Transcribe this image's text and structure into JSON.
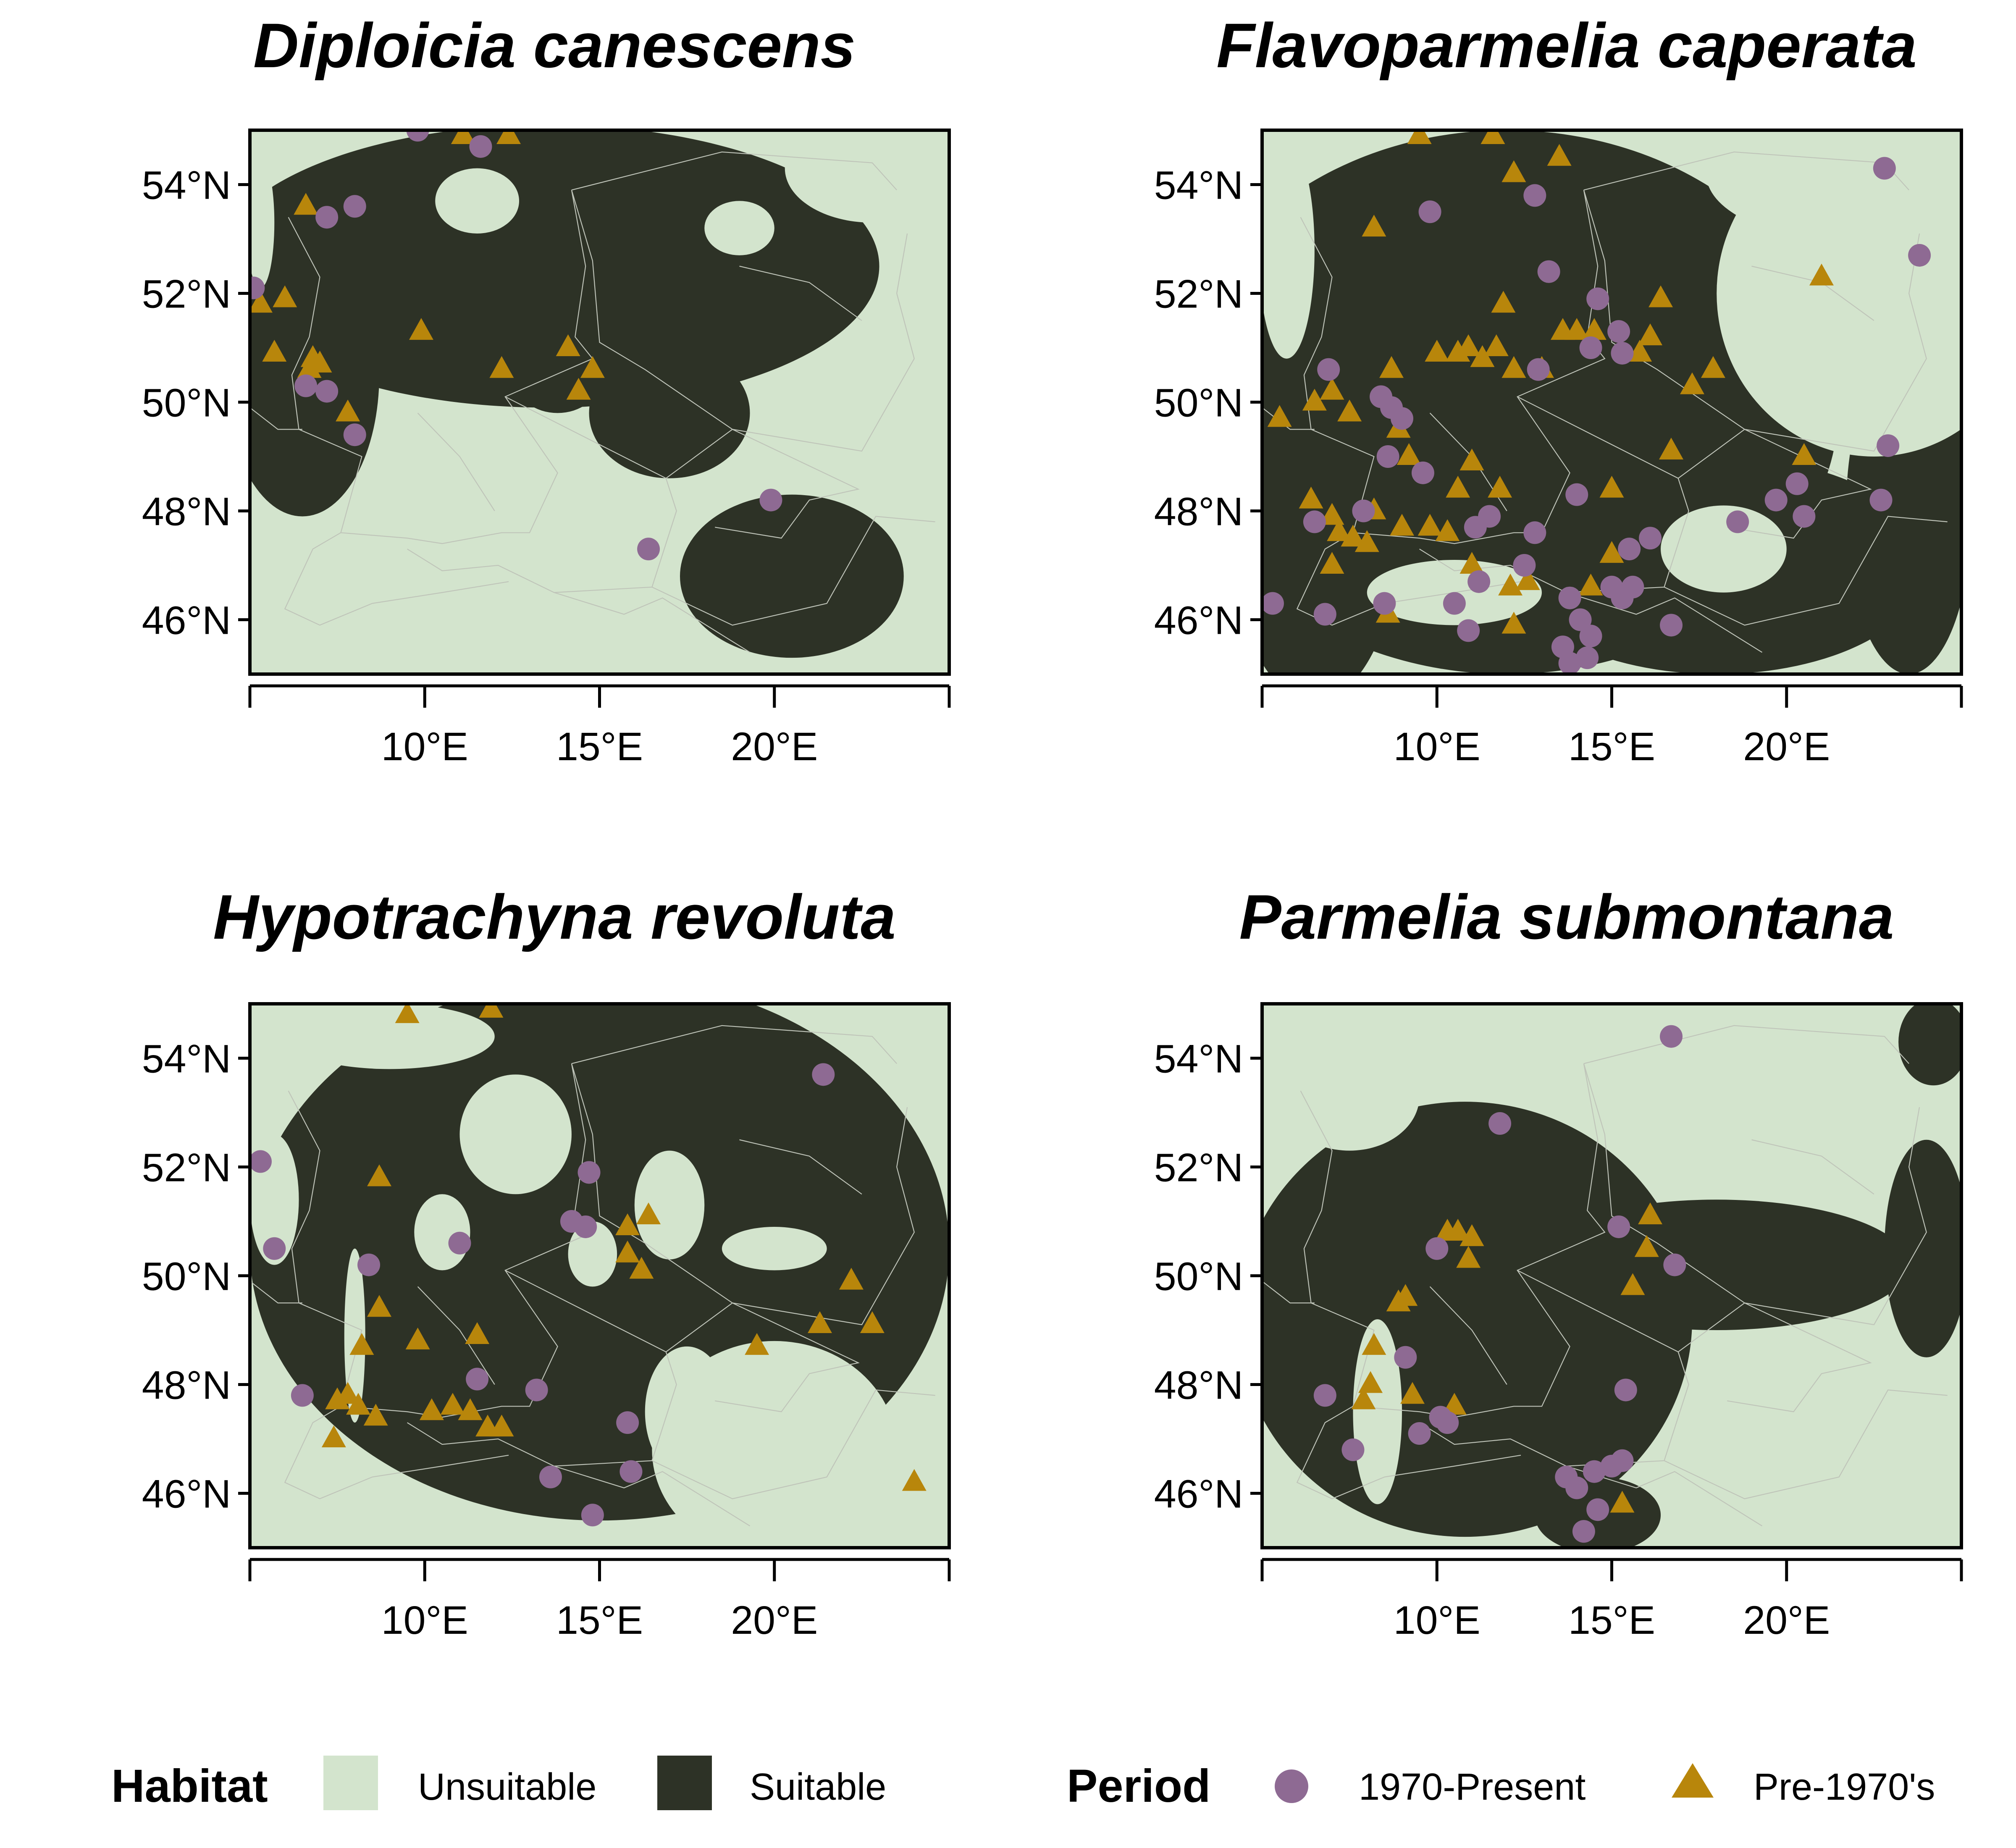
{
  "figure": {
    "colors": {
      "unsuitable": "#d3e4cd",
      "suitable": "#2d3226",
      "present": "#8e6a93",
      "pre1970": "#b8860b",
      "border": "#bfc4b9"
    }
  },
  "axes": {
    "lat_ticks": [
      "54°N",
      "52°N",
      "50°N",
      "48°N",
      "46°N"
    ],
    "lon_ticks": [
      "10°E",
      "15°E",
      "20°E"
    ],
    "lat_values": [
      54,
      52,
      50,
      48,
      46
    ],
    "lon_values": [
      10,
      15,
      20
    ],
    "lon_range": [
      5,
      25
    ],
    "lat_range": [
      45,
      55
    ]
  },
  "legend": {
    "habitat_title": "Habitat",
    "habitat_unsuitable": "Unsuitable",
    "habitat_suitable": "Suitable",
    "period_title": "Period",
    "period_present": "1970-Present",
    "period_pre": "Pre-1970's"
  },
  "panels": [
    {
      "title": "Diploicia canescens"
    },
    {
      "title": "Flavoparmelia caperata"
    },
    {
      "title": "Hypotrachyna revoluta"
    },
    {
      "title": "Parmelia submontana"
    }
  ],
  "chart_data": [
    {
      "type": "scatter",
      "title": "Diploicia canescens",
      "xlim": [
        5,
        25
      ],
      "ylim": [
        45,
        55
      ],
      "habitat_suitable_blobs": [
        {
          "lon": 13.5,
          "lat": 52.5,
          "rlon": 9.5,
          "rlat": 2.6
        },
        {
          "lon": 6.5,
          "lat": 50.5,
          "rlon": 2.2,
          "rlat": 2.6
        },
        {
          "lon": 20.5,
          "lat": 46.8,
          "rlon": 3.2,
          "rlat": 1.5
        },
        {
          "lon": 17.0,
          "lat": 49.8,
          "rlon": 2.3,
          "rlat": 1.2
        },
        {
          "lon": 13.8,
          "lat": 50.4,
          "rlon": 1.2,
          "rlat": 0.6
        }
      ],
      "habitat_unsuitable_blobs": [
        {
          "lon": 22.8,
          "lat": 54.3,
          "rlon": 2.5,
          "rlat": 1.0
        },
        {
          "lon": 11.5,
          "lat": 53.7,
          "rlon": 1.2,
          "rlat": 0.6
        },
        {
          "lon": 19.0,
          "lat": 53.2,
          "rlon": 1.0,
          "rlat": 0.5
        },
        {
          "lon": 5.3,
          "lat": 53.3,
          "rlon": 0.4,
          "rlat": 1.2
        }
      ],
      "present": [
        [
          5.1,
          52.1
        ],
        [
          7.2,
          53.4
        ],
        [
          8.0,
          53.6
        ],
        [
          9.8,
          55.0
        ],
        [
          11.6,
          54.7
        ],
        [
          6.6,
          50.3
        ],
        [
          7.2,
          50.2
        ],
        [
          8.0,
          49.4
        ],
        [
          19.9,
          48.2
        ],
        [
          16.4,
          47.3
        ]
      ],
      "pre1970": [
        [
          6.6,
          53.6
        ],
        [
          5.3,
          51.8
        ],
        [
          6.0,
          51.9
        ],
        [
          6.8,
          50.8
        ],
        [
          6.7,
          50.6
        ],
        [
          5.7,
          50.9
        ],
        [
          7.0,
          50.7
        ],
        [
          7.8,
          49.8
        ],
        [
          9.9,
          51.3
        ],
        [
          14.1,
          51.0
        ],
        [
          14.8,
          50.6
        ],
        [
          14.4,
          50.2
        ],
        [
          12.2,
          50.6
        ],
        [
          11.1,
          54.9
        ],
        [
          12.4,
          54.9
        ]
      ]
    },
    {
      "type": "scatter",
      "title": "Flavoparmelia caperata",
      "xlim": [
        5,
        25
      ],
      "ylim": [
        45,
        55
      ],
      "habitat_suitable_blobs": [
        {
          "lon": 12.0,
          "lat": 50.0,
          "rlon": 9.5,
          "rlat": 5.0
        },
        {
          "lon": 18.0,
          "lat": 47.0,
          "rlon": 6.0,
          "rlat": 2.0
        },
        {
          "lon": 23.5,
          "lat": 48.0,
          "rlon": 1.8,
          "rlat": 3.0
        },
        {
          "lon": 6.5,
          "lat": 48.0,
          "rlon": 2.5,
          "rlat": 3.5
        }
      ],
      "habitat_unsuitable_blobs": [
        {
          "lon": 22.5,
          "lat": 52.0,
          "rlon": 4.5,
          "rlat": 3.0
        },
        {
          "lon": 21.5,
          "lat": 54.2,
          "rlon": 3.8,
          "rlat": 1.2
        },
        {
          "lon": 18.2,
          "lat": 47.3,
          "rlon": 1.8,
          "rlat": 0.8
        },
        {
          "lon": 5.7,
          "lat": 52.8,
          "rlon": 0.8,
          "rlat": 2.0
        },
        {
          "lon": 10.5,
          "lat": 46.5,
          "rlon": 2.5,
          "rlat": 0.6
        }
      ],
      "present": [
        [
          22.8,
          54.3
        ],
        [
          23.8,
          52.7
        ],
        [
          9.8,
          53.5
        ],
        [
          12.8,
          53.8
        ],
        [
          13.2,
          52.4
        ],
        [
          14.6,
          51.9
        ],
        [
          6.9,
          50.6
        ],
        [
          12.9,
          50.6
        ],
        [
          14.4,
          51.0
        ],
        [
          15.2,
          51.3
        ],
        [
          15.3,
          50.9
        ],
        [
          8.4,
          50.1
        ],
        [
          8.7,
          49.9
        ],
        [
          9.0,
          49.7
        ],
        [
          8.6,
          49.0
        ],
        [
          9.6,
          48.7
        ],
        [
          7.9,
          48.0
        ],
        [
          6.5,
          47.8
        ],
        [
          11.1,
          47.7
        ],
        [
          11.5,
          47.9
        ],
        [
          12.8,
          47.6
        ],
        [
          14.0,
          48.3
        ],
        [
          15.5,
          47.3
        ],
        [
          16.1,
          47.5
        ],
        [
          12.5,
          47.0
        ],
        [
          11.2,
          46.7
        ],
        [
          10.5,
          46.3
        ],
        [
          8.5,
          46.3
        ],
        [
          10.9,
          45.8
        ],
        [
          6.8,
          46.1
        ],
        [
          5.3,
          46.3
        ],
        [
          13.8,
          46.4
        ],
        [
          14.1,
          46.0
        ],
        [
          14.4,
          45.7
        ],
        [
          13.6,
          45.5
        ],
        [
          15.0,
          46.6
        ],
        [
          15.3,
          46.4
        ],
        [
          15.6,
          46.6
        ],
        [
          16.7,
          45.9
        ],
        [
          18.6,
          47.8
        ],
        [
          19.7,
          48.2
        ],
        [
          20.3,
          48.5
        ],
        [
          20.5,
          47.9
        ],
        [
          22.9,
          49.2
        ],
        [
          22.7,
          48.2
        ],
        [
          13.8,
          45.2
        ],
        [
          14.3,
          45.3
        ]
      ],
      "pre1970": [
        [
          9.5,
          54.9
        ],
        [
          11.6,
          54.9
        ],
        [
          12.2,
          54.2
        ],
        [
          13.5,
          54.5
        ],
        [
          8.2,
          53.2
        ],
        [
          21.0,
          52.3
        ],
        [
          11.9,
          51.8
        ],
        [
          16.4,
          51.9
        ],
        [
          13.6,
          51.3
        ],
        [
          14.0,
          51.3
        ],
        [
          14.5,
          51.3
        ],
        [
          16.1,
          51.2
        ],
        [
          10.0,
          50.9
        ],
        [
          10.6,
          50.9
        ],
        [
          10.9,
          51.0
        ],
        [
          11.3,
          50.8
        ],
        [
          11.7,
          51.0
        ],
        [
          12.2,
          50.6
        ],
        [
          13.0,
          50.6
        ],
        [
          15.8,
          50.9
        ],
        [
          17.3,
          50.3
        ],
        [
          17.9,
          50.6
        ],
        [
          8.7,
          50.6
        ],
        [
          7.0,
          50.2
        ],
        [
          6.5,
          50.0
        ],
        [
          5.5,
          49.7
        ],
        [
          7.5,
          49.8
        ],
        [
          8.9,
          49.5
        ],
        [
          9.2,
          49.0
        ],
        [
          11.0,
          48.9
        ],
        [
          11.8,
          48.4
        ],
        [
          10.6,
          48.4
        ],
        [
          15.0,
          48.4
        ],
        [
          16.7,
          49.1
        ],
        [
          20.5,
          49.0
        ],
        [
          6.4,
          48.2
        ],
        [
          7.0,
          47.9
        ],
        [
          8.2,
          48.0
        ],
        [
          9.0,
          47.7
        ],
        [
          9.8,
          47.7
        ],
        [
          10.3,
          47.6
        ],
        [
          7.2,
          47.6
        ],
        [
          7.6,
          47.5
        ],
        [
          8.0,
          47.4
        ],
        [
          11.0,
          47.0
        ],
        [
          12.1,
          46.6
        ],
        [
          12.6,
          46.7
        ],
        [
          12.2,
          45.9
        ],
        [
          15.0,
          47.2
        ],
        [
          14.4,
          46.6
        ],
        [
          8.6,
          46.1
        ],
        [
          7.0,
          47.0
        ]
      ]
    },
    {
      "type": "scatter",
      "title": "Hypotrachyna revoluta",
      "xlim": [
        5,
        25
      ],
      "ylim": [
        45,
        55
      ],
      "habitat_suitable_blobs": [
        {
          "lon": 15.0,
          "lat": 50.5,
          "rlon": 10.0,
          "rlat": 5.0
        }
      ],
      "habitat_unsuitable_blobs": [
        {
          "lon": 20.0,
          "lat": 46.8,
          "rlon": 3.5,
          "rlat": 2.0
        },
        {
          "lon": 12.6,
          "lat": 52.6,
          "rlon": 1.6,
          "rlat": 1.1
        },
        {
          "lon": 17.5,
          "lat": 47.5,
          "rlon": 1.2,
          "rlat": 1.2
        },
        {
          "lon": 14.8,
          "lat": 50.4,
          "rlon": 0.7,
          "rlat": 0.6
        },
        {
          "lon": 17.0,
          "lat": 51.3,
          "rlon": 1.0,
          "rlat": 1.0
        },
        {
          "lon": 5.7,
          "lat": 51.4,
          "rlon": 0.7,
          "rlat": 1.2
        },
        {
          "lon": 9.0,
          "lat": 54.4,
          "rlon": 3.0,
          "rlat": 0.6
        },
        {
          "lon": 8.0,
          "lat": 48.9,
          "rlon": 0.3,
          "rlat": 1.6
        },
        {
          "lon": 10.5,
          "lat": 50.8,
          "rlon": 0.8,
          "rlat": 0.7
        },
        {
          "lon": 20.0,
          "lat": 50.5,
          "rlon": 1.5,
          "rlat": 0.4
        }
      ],
      "present": [
        [
          5.3,
          52.1
        ],
        [
          5.7,
          50.5
        ],
        [
          8.4,
          50.2
        ],
        [
          11.0,
          50.6
        ],
        [
          14.2,
          51.0
        ],
        [
          14.6,
          50.9
        ],
        [
          14.7,
          51.9
        ],
        [
          6.5,
          47.8
        ],
        [
          11.5,
          48.1
        ],
        [
          13.2,
          47.9
        ],
        [
          15.8,
          47.3
        ],
        [
          15.9,
          46.4
        ],
        [
          13.6,
          46.3
        ],
        [
          14.8,
          45.6
        ],
        [
          21.4,
          53.7
        ]
      ],
      "pre1970": [
        [
          9.5,
          54.8
        ],
        [
          11.9,
          54.9
        ],
        [
          8.7,
          51.8
        ],
        [
          15.8,
          50.9
        ],
        [
          16.4,
          51.1
        ],
        [
          15.8,
          50.4
        ],
        [
          16.2,
          50.1
        ],
        [
          8.7,
          49.4
        ],
        [
          9.8,
          48.8
        ],
        [
          11.5,
          48.9
        ],
        [
          8.2,
          48.7
        ],
        [
          7.5,
          47.7
        ],
        [
          7.8,
          47.8
        ],
        [
          8.1,
          47.6
        ],
        [
          7.4,
          47.0
        ],
        [
          8.6,
          47.4
        ],
        [
          10.2,
          47.5
        ],
        [
          10.8,
          47.6
        ],
        [
          11.3,
          47.5
        ],
        [
          11.8,
          47.2
        ],
        [
          12.2,
          47.2
        ],
        [
          19.5,
          48.7
        ],
        [
          21.3,
          49.1
        ],
        [
          22.2,
          49.9
        ],
        [
          22.8,
          49.1
        ],
        [
          24.0,
          46.2
        ]
      ]
    },
    {
      "type": "scatter",
      "title": "Parmelia submontana",
      "xlim": [
        5,
        25
      ],
      "ylim": [
        45,
        55
      ],
      "habitat_suitable_blobs": [
        {
          "lon": 10.8,
          "lat": 49.2,
          "rlon": 6.5,
          "rlat": 4.0
        },
        {
          "lon": 18.0,
          "lat": 50.2,
          "rlon": 5.5,
          "rlat": 1.2
        },
        {
          "lon": 24.0,
          "lat": 50.5,
          "rlon": 1.2,
          "rlat": 2.0
        },
        {
          "lon": 24.2,
          "lat": 54.3,
          "rlon": 1.0,
          "rlat": 0.8
        },
        {
          "lon": 14.6,
          "lat": 45.6,
          "rlon": 1.8,
          "rlat": 0.7
        }
      ],
      "habitat_unsuitable_blobs": [
        {
          "lon": 8.3,
          "lat": 47.5,
          "rlon": 0.7,
          "rlat": 1.7
        },
        {
          "lon": 7.5,
          "lat": 53.3,
          "rlon": 2.0,
          "rlat": 1.0
        }
      ],
      "present": [
        [
          16.7,
          54.4
        ],
        [
          11.8,
          52.8
        ],
        [
          10.0,
          50.5
        ],
        [
          15.2,
          50.9
        ],
        [
          16.8,
          50.2
        ],
        [
          9.1,
          48.5
        ],
        [
          6.8,
          47.8
        ],
        [
          15.4,
          47.9
        ],
        [
          10.1,
          47.4
        ],
        [
          10.3,
          47.3
        ],
        [
          9.5,
          47.1
        ],
        [
          7.6,
          46.8
        ],
        [
          13.7,
          46.3
        ],
        [
          14.0,
          46.1
        ],
        [
          14.5,
          46.4
        ],
        [
          15.0,
          46.5
        ],
        [
          15.3,
          46.6
        ],
        [
          14.6,
          45.7
        ],
        [
          14.2,
          45.3
        ]
      ],
      "pre1970": [
        [
          10.3,
          50.8
        ],
        [
          10.6,
          50.8
        ],
        [
          10.9,
          50.3
        ],
        [
          11.0,
          50.7
        ],
        [
          16.1,
          51.1
        ],
        [
          16.0,
          50.5
        ],
        [
          15.6,
          49.8
        ],
        [
          8.9,
          49.5
        ],
        [
          9.1,
          49.6
        ],
        [
          8.2,
          48.7
        ],
        [
          8.1,
          48.0
        ],
        [
          7.9,
          47.7
        ],
        [
          9.3,
          47.8
        ],
        [
          10.5,
          47.6
        ],
        [
          15.3,
          45.8
        ]
      ]
    }
  ]
}
